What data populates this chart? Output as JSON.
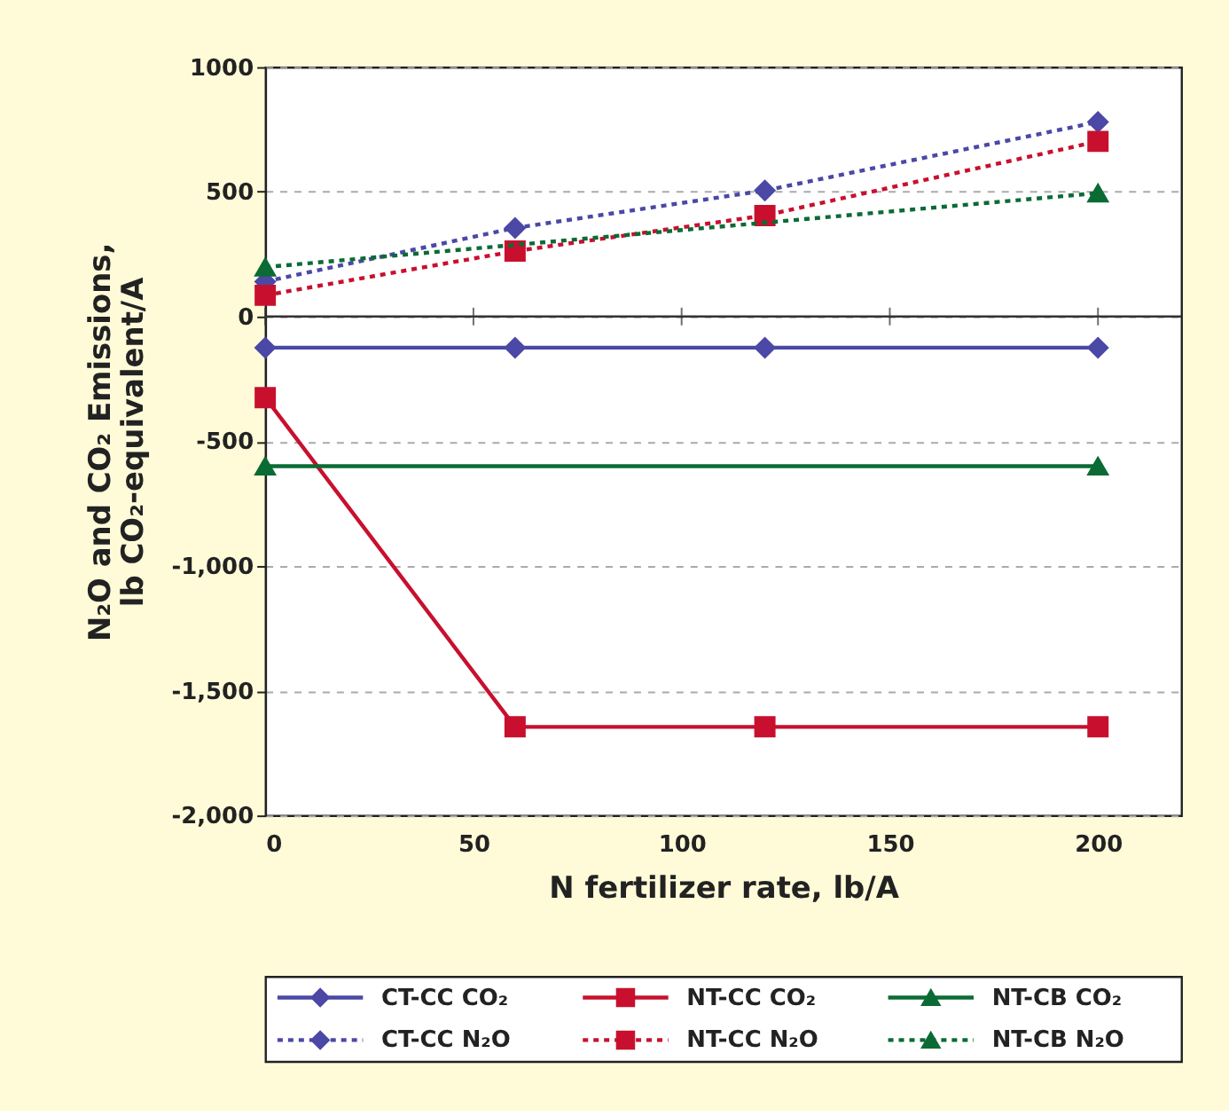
{
  "chart_data": {
    "type": "line",
    "xlabel": "N fertilizer rate, lb/A",
    "ylabel": "N₂O and CO₂ Emissions,\nlb CO₂-equivalent/A",
    "x": [
      0,
      60,
      120,
      200
    ],
    "series": [
      {
        "name": "CT-CC CO₂",
        "color": "#4b48a6",
        "values": [
          -125,
          -125,
          -125,
          -125
        ],
        "marker": "diamond",
        "line_style": "solid"
      },
      {
        "name": "NT-CC CO₂",
        "color": "#c8102e",
        "values": [
          -325,
          -1645,
          -1645,
          -1645
        ],
        "marker": "square",
        "line_style": "solid"
      },
      {
        "name": "NT-CB CO₂",
        "color": "#0b6b35",
        "values": [
          -600,
          null,
          null,
          -600
        ],
        "marker": "triangle",
        "line_style": "solid"
      },
      {
        "name": "CT-CC N₂O",
        "color": "#4b48a6",
        "values": [
          140,
          355,
          505,
          780
        ],
        "marker": "diamond",
        "line_style": "dotted"
      },
      {
        "name": "NT-CC N₂O",
        "color": "#c8102e",
        "values": [
          85,
          262,
          405,
          702
        ],
        "marker": "square",
        "line_style": "dotted"
      },
      {
        "name": "NT-CB N₂O",
        "color": "#0b6b35",
        "values": [
          198,
          null,
          null,
          495
        ],
        "marker": "triangle",
        "line_style": "dotted"
      }
    ],
    "xlim": [
      0,
      220
    ],
    "xticks": [
      0,
      50,
      100,
      150,
      200
    ],
    "ylim": [
      -2000,
      1000
    ],
    "yticks": [
      1000,
      500,
      0,
      -500,
      {
        "value": -1000,
        "label": "-1,000"
      },
      {
        "value": -1500,
        "label": "-1,500"
      },
      {
        "value": -2000,
        "label": "-2,000"
      }
    ],
    "ref_lines": [
      {
        "axis": "y",
        "value": 0,
        "color": "#333333",
        "line_style": "solid"
      }
    ],
    "grid": "y",
    "legend": "bottom"
  }
}
